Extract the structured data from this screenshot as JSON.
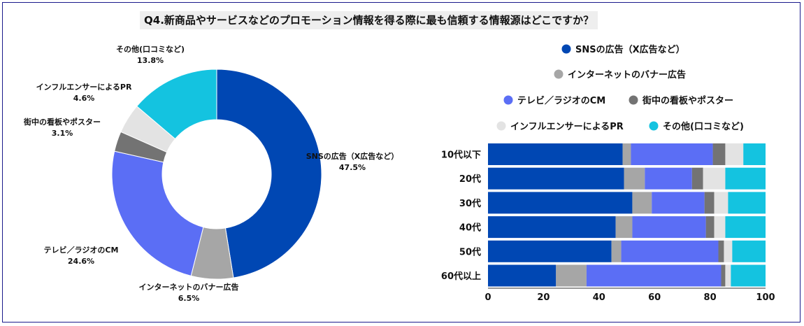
{
  "title": "Q4.新商品やサービスなどのプロモーション情報を得る際に最も信頼する情報源はどこですか？",
  "colors": {
    "sns": "#0047b3",
    "banner": "#a6a6a6",
    "tv": "#5b6ef5",
    "street": "#737373",
    "influencer": "#e3e3e3",
    "other": "#14c3e0"
  },
  "chart_data": [
    {
      "type": "pie",
      "title": "",
      "donut": true,
      "slices": [
        {
          "key": "sns",
          "label": "SNSの広告（X広告など）",
          "value": 47.5,
          "value_label": "47.5%"
        },
        {
          "key": "banner",
          "label": "インターネットのバナー広告",
          "value": 6.5,
          "value_label": "6.5%"
        },
        {
          "key": "tv",
          "label": "テレビ／ラジオのCM",
          "value": 24.6,
          "value_label": "24.6%"
        },
        {
          "key": "street",
          "label": "街中の看板やポスター",
          "value": 3.1,
          "value_label": "3.1%"
        },
        {
          "key": "influencer",
          "label": "インフルエンサーによるPR",
          "value": 4.6,
          "value_label": "4.6%"
        },
        {
          "key": "other",
          "label": "その他(口コミなど)",
          "value": 13.8,
          "value_label": "13.8%"
        }
      ]
    },
    {
      "type": "bar",
      "orientation": "horizontal",
      "stacked": true,
      "categories": [
        "10代以下",
        "20代",
        "30代",
        "40代",
        "50代",
        "60代以上"
      ],
      "series": [
        {
          "key": "sns",
          "name": "SNSの広告（X広告など）",
          "values": [
            48.5,
            49,
            52,
            46,
            44.5,
            24.5
          ]
        },
        {
          "key": "banner",
          "name": "インターネットのバナー広告",
          "values": [
            3,
            7.5,
            7,
            6,
            3.5,
            11
          ]
        },
        {
          "key": "tv",
          "name": "テレビ／ラジオのCM",
          "values": [
            29.5,
            17,
            19,
            26.5,
            35,
            48.5
          ]
        },
        {
          "key": "street",
          "name": "街中の看板やポスター",
          "values": [
            4.5,
            4,
            3.5,
            3,
            2,
            1.5
          ]
        },
        {
          "key": "influencer",
          "name": "インフルエンサーによるPR",
          "values": [
            6.5,
            8,
            5,
            4,
            3,
            2
          ]
        },
        {
          "key": "other",
          "name": "その他(口コミなど)",
          "values": [
            8,
            14.5,
            13.5,
            14.5,
            12,
            12.5
          ]
        }
      ],
      "xlim": [
        0,
        100
      ],
      "xticks": [
        "0",
        "20",
        "40",
        "60",
        "80",
        "100"
      ],
      "legend": "top"
    }
  ]
}
